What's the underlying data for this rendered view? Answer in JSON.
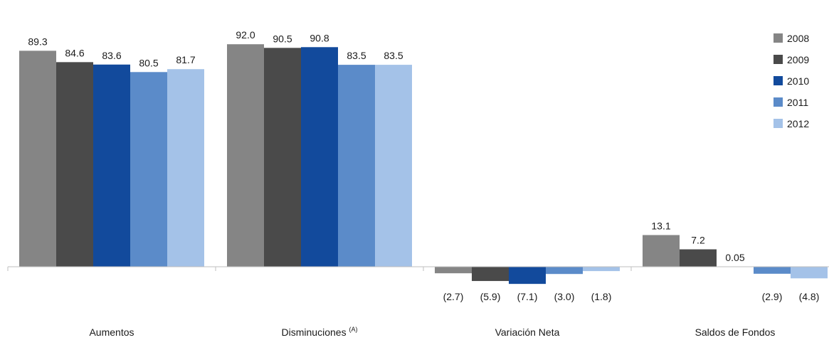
{
  "chart_data": {
    "type": "bar",
    "categories": [
      "Aumentos",
      "Disminuciones",
      "Variación Neta",
      "Saldos de Fondos"
    ],
    "category_superscripts": [
      "",
      "(A)",
      "",
      ""
    ],
    "series": [
      {
        "name": "2008",
        "color": "#858585",
        "values": [
          89.3,
          92.0,
          -2.7,
          13.1
        ],
        "labels": [
          "89.3",
          "92.0",
          "(2.7)",
          "13.1"
        ]
      },
      {
        "name": "2009",
        "color": "#4a4a4a",
        "values": [
          84.6,
          90.5,
          -5.9,
          7.2
        ],
        "labels": [
          "84.6",
          "90.5",
          "(5.9)",
          "7.2"
        ]
      },
      {
        "name": "2010",
        "color": "#124a9c",
        "values": [
          83.6,
          90.8,
          -7.1,
          0.05
        ],
        "labels": [
          "83.6",
          "90.8",
          "(7.1)",
          "0.05"
        ]
      },
      {
        "name": "2011",
        "color": "#5b8bc9",
        "values": [
          80.5,
          83.5,
          -3.0,
          -2.9
        ],
        "labels": [
          "80.5",
          "83.5",
          "(3.0)",
          "(2.9)"
        ]
      },
      {
        "name": "2012",
        "color": "#a4c2e8",
        "values": [
          81.7,
          83.5,
          -1.8,
          -4.8
        ],
        "labels": [
          "81.7",
          "83.5",
          "(1.8)",
          "(4.8)"
        ]
      }
    ],
    "legend_position": "right",
    "grid": false,
    "axis_color": "#bfbfbf"
  }
}
